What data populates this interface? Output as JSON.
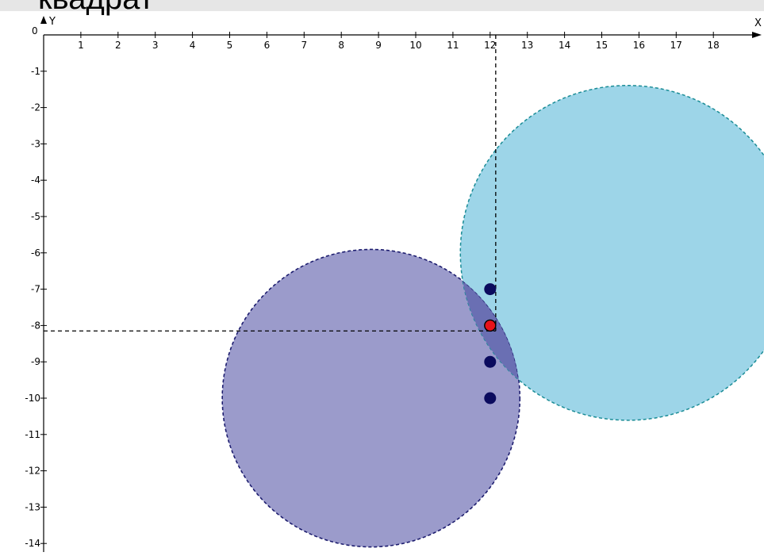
{
  "header": {
    "title": "квадрат"
  },
  "axes": {
    "origin_label": "0",
    "x_label": "X",
    "y_label": "Y",
    "x_ticks": [
      1,
      2,
      3,
      4,
      5,
      6,
      7,
      8,
      9,
      10,
      11,
      12,
      13,
      14,
      15,
      16,
      17,
      18
    ],
    "y_ticks": [
      -1,
      -2,
      -3,
      -4,
      -5,
      -6,
      -7,
      -8,
      -9,
      -10,
      -11,
      -12,
      -13,
      -14
    ],
    "x_tick_labels": [
      "1",
      "2",
      "3",
      "4",
      "5",
      "6",
      "7",
      "8",
      "9",
      "10",
      "11",
      "12",
      "13",
      "14",
      "15",
      "16",
      "17",
      "18"
    ],
    "y_tick_labels": [
      "-1",
      "-2",
      "-3",
      "-4",
      "-5",
      "-6",
      "-7",
      "-8",
      "-9",
      "-10",
      "-11",
      "-12",
      "-13",
      "-14"
    ]
  },
  "shapes": {
    "circles": [
      {
        "name": "circle-left",
        "cx": 8.8,
        "cy": -10,
        "r": 4,
        "fill": "#9b9bcb",
        "stroke": "#1c1c6e"
      },
      {
        "name": "circle-right",
        "cx": 15.7,
        "cy": -6,
        "r": 4.5,
        "fill": "#9dd5e8",
        "stroke": "#1a8c96"
      }
    ],
    "overlap_fill": "#6a6fb3",
    "guides": {
      "vertical_x": 12.15,
      "horizontal_y": -8.15
    },
    "points": [
      {
        "x": 12,
        "y": -7,
        "color": "#0b0b5e"
      },
      {
        "x": 12,
        "y": -8,
        "color": "#e8121b"
      },
      {
        "x": 12,
        "y": -9,
        "color": "#0b0b5e"
      },
      {
        "x": 12,
        "y": -10,
        "color": "#0b0b5e"
      }
    ]
  },
  "colors": {
    "axis": "#000000",
    "guide": "#000000"
  }
}
